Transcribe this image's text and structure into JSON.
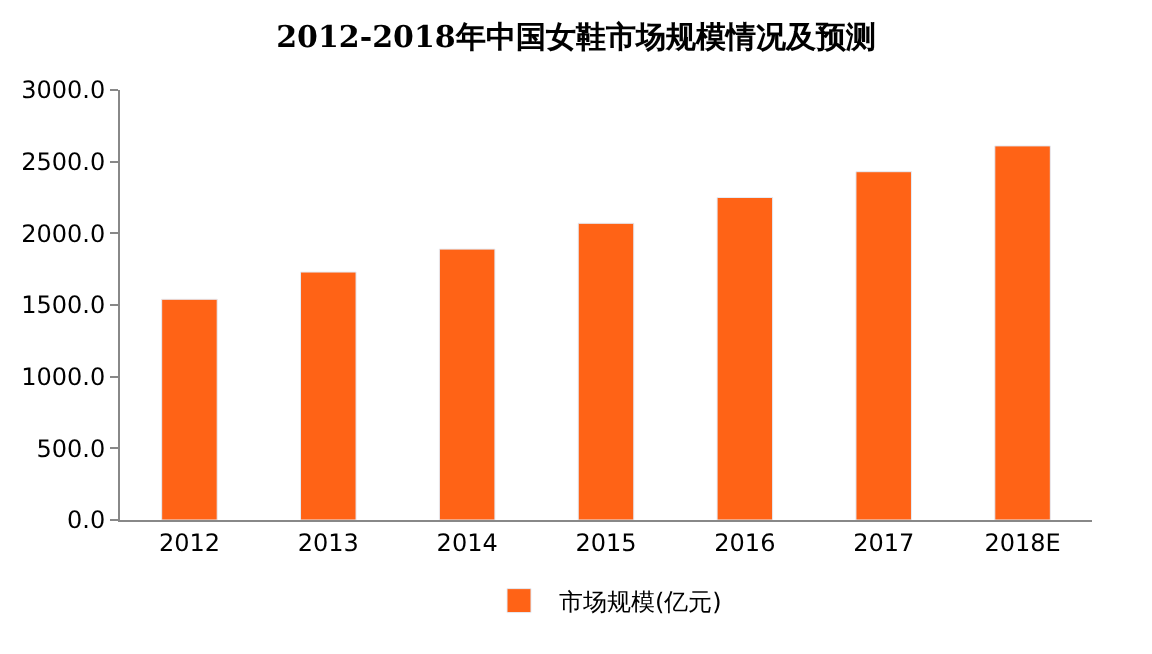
{
  "chart_data": {
    "type": "bar",
    "title": "2012-2018年中国女鞋市场规模情况及预测",
    "categories": [
      "2012",
      "2013",
      "2014",
      "2015",
      "2016",
      "2017",
      "2018E"
    ],
    "series": [
      {
        "name": "市场规模(亿元)",
        "color": "#ff6316",
        "values": [
          1540,
          1730,
          1890,
          2070,
          2250,
          2430,
          2610
        ]
      }
    ],
    "ylim": [
      0,
      3000
    ],
    "yticks": [
      {
        "value": 0,
        "label": "0.0"
      },
      {
        "value": 500,
        "label": "500.0"
      },
      {
        "value": 1000,
        "label": "1000.0"
      },
      {
        "value": 1500,
        "label": "1500.0"
      },
      {
        "value": 2000,
        "label": "2000.0"
      },
      {
        "value": 2500,
        "label": "2500.0"
      },
      {
        "value": 3000,
        "label": "3000.0"
      }
    ],
    "legend": "bottom"
  }
}
